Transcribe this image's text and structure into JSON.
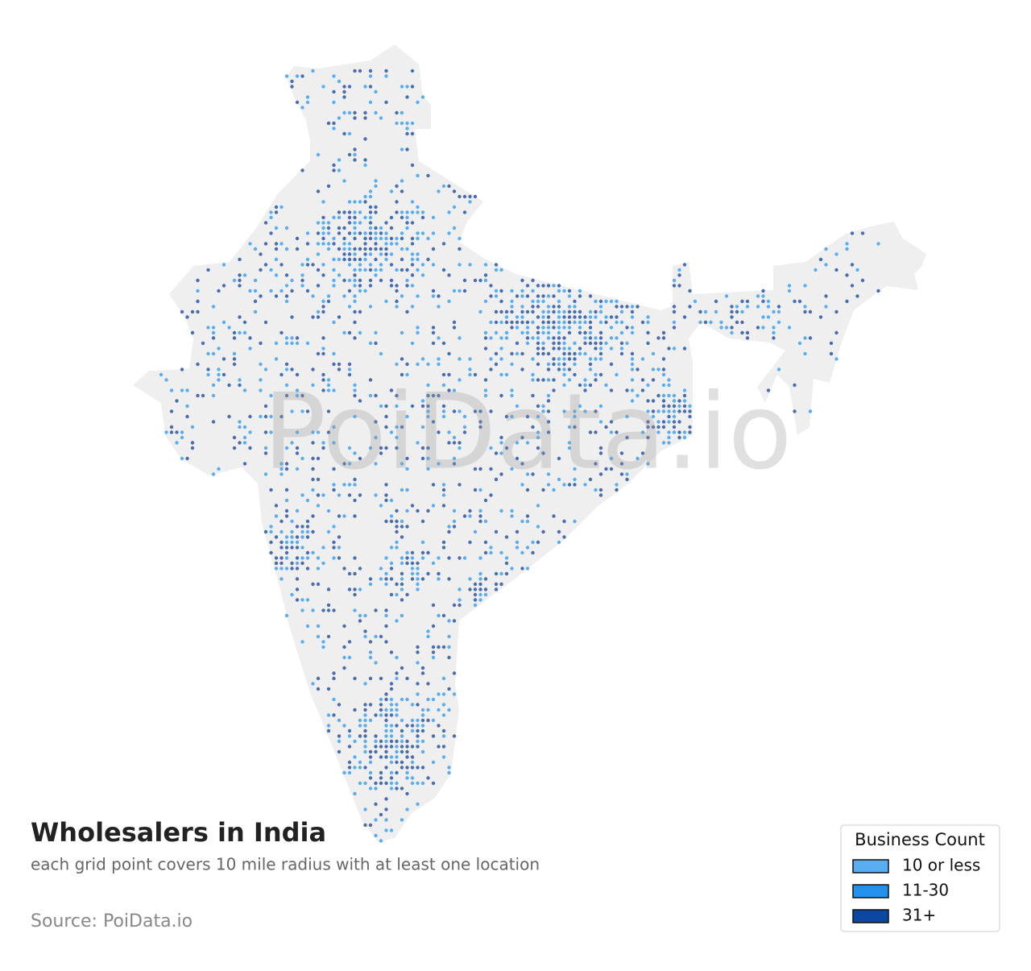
{
  "title": "Wholesalers in India",
  "subtitle": "each grid point covers 10 mile radius with at least one location",
  "source": "Source: PoiData.io",
  "watermark": "PoiData.io",
  "legend": {
    "title": "Business Count",
    "items": [
      {
        "label": "10 or less",
        "color": "#5aaef0"
      },
      {
        "label": "11-30",
        "color": "#2391ee"
      },
      {
        "label": "31+",
        "color": "#0c47a1"
      }
    ]
  }
}
